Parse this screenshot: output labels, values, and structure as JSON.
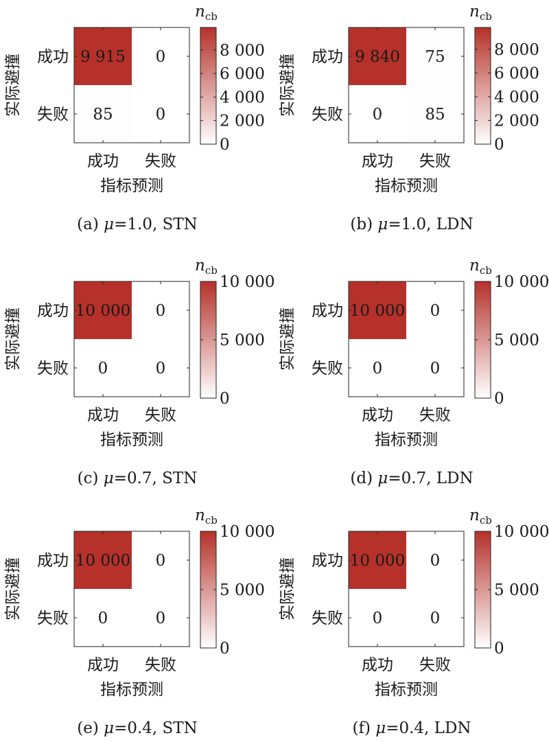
{
  "colorbar_unit": {
    "base": "n",
    "sub": "cb"
  },
  "axis_labels": {
    "y_title": "实际避撞",
    "x_title": "指标预测",
    "row_categories": [
      "成功",
      "失败"
    ],
    "col_categories": [
      "成功",
      "失败"
    ]
  },
  "colors": {
    "high": "#b5312a",
    "low": "#ffffff"
  },
  "chart_data": [
    {
      "type": "heatmap",
      "caption": {
        "label": "(a) ",
        "mu_symbol": "μ",
        "rest": "=1.0, STN"
      },
      "matrix": [
        [
          9915,
          0
        ],
        [
          85,
          0
        ]
      ],
      "cell_labels": [
        [
          "9 915",
          "0"
        ],
        [
          "85",
          "0"
        ]
      ],
      "colorbar_range": [
        0,
        9915
      ],
      "colorbar_ticks": [
        0,
        2000,
        4000,
        6000,
        8000
      ],
      "colorbar_tick_labels": [
        "0",
        "2 000",
        "4 000",
        "6 000",
        "8 000"
      ]
    },
    {
      "type": "heatmap",
      "caption": {
        "label": "(b) ",
        "mu_symbol": "μ",
        "rest": "=1.0, LDN"
      },
      "matrix": [
        [
          9840,
          75
        ],
        [
          0,
          85
        ]
      ],
      "cell_labels": [
        [
          "9 840",
          "75"
        ],
        [
          "0",
          "85"
        ]
      ],
      "colorbar_range": [
        0,
        9840
      ],
      "colorbar_ticks": [
        0,
        2000,
        4000,
        6000,
        8000
      ],
      "colorbar_tick_labels": [
        "0",
        "2 000",
        "4 000",
        "6 000",
        "8 000"
      ]
    },
    {
      "type": "heatmap",
      "caption": {
        "label": "(c) ",
        "mu_symbol": "μ",
        "rest": "=0.7, STN"
      },
      "matrix": [
        [
          10000,
          0
        ],
        [
          0,
          0
        ]
      ],
      "cell_labels": [
        [
          "10 000",
          "0"
        ],
        [
          "0",
          "0"
        ]
      ],
      "colorbar_range": [
        0,
        10000
      ],
      "colorbar_ticks": [
        0,
        5000,
        10000
      ],
      "colorbar_tick_labels": [
        "0",
        "5 000",
        "10 000"
      ]
    },
    {
      "type": "heatmap",
      "caption": {
        "label": "(d) ",
        "mu_symbol": "μ",
        "rest": "=0.7, LDN"
      },
      "matrix": [
        [
          10000,
          0
        ],
        [
          0,
          0
        ]
      ],
      "cell_labels": [
        [
          "10 000",
          "0"
        ],
        [
          "0",
          "0"
        ]
      ],
      "colorbar_range": [
        0,
        10000
      ],
      "colorbar_ticks": [
        0,
        5000,
        10000
      ],
      "colorbar_tick_labels": [
        "0",
        "5 000",
        "10 000"
      ]
    },
    {
      "type": "heatmap",
      "caption": {
        "label": "(e) ",
        "mu_symbol": "μ",
        "rest": "=0.4, STN"
      },
      "matrix": [
        [
          10000,
          0
        ],
        [
          0,
          0
        ]
      ],
      "cell_labels": [
        [
          "10 000",
          "0"
        ],
        [
          "0",
          "0"
        ]
      ],
      "colorbar_range": [
        0,
        10000
      ],
      "colorbar_ticks": [
        0,
        5000,
        10000
      ],
      "colorbar_tick_labels": [
        "0",
        "5 000",
        "10 000"
      ]
    },
    {
      "type": "heatmap",
      "caption": {
        "label": "(f) ",
        "mu_symbol": "μ",
        "rest": "=0.4, LDN"
      },
      "matrix": [
        [
          10000,
          0
        ],
        [
          0,
          0
        ]
      ],
      "cell_labels": [
        [
          "10 000",
          "0"
        ],
        [
          "0",
          "0"
        ]
      ],
      "colorbar_range": [
        0,
        10000
      ],
      "colorbar_ticks": [
        0,
        5000,
        10000
      ],
      "colorbar_tick_labels": [
        "0",
        "5 000",
        "10 000"
      ]
    }
  ]
}
